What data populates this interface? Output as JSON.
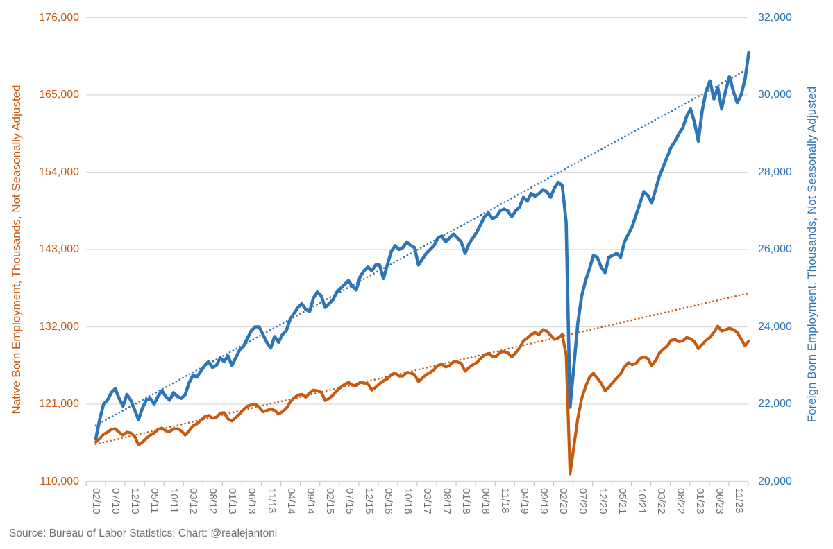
{
  "chart_data": {
    "type": "line",
    "grid": "horizontal",
    "legend_position": "none",
    "x_axis": {
      "frequency": "monthly",
      "start_month": "02/10",
      "end_month": "02/24",
      "label_interval_months": 5,
      "tick_labels": [
        "02/10",
        "07/10",
        "12/10",
        "05/11",
        "10/11",
        "03/12",
        "08/12",
        "01/13",
        "06/13",
        "11/13",
        "04/14",
        "09/14",
        "02/15",
        "07/15",
        "12/15",
        "05/16",
        "10/16",
        "03/17",
        "08/17",
        "01/18",
        "06/18",
        "11/18",
        "04/19",
        "09/19",
        "02/20",
        "07/20",
        "12/20",
        "05/21",
        "10/21",
        "03/22",
        "08/22",
        "01/23",
        "06/23",
        "11/23"
      ]
    },
    "left_axis": {
      "title": "Native Born Employment, Thousands, Not Seasonally Adjusted",
      "min": 110000,
      "max": 176000,
      "step": 11000,
      "tick_labels": [
        "176,000",
        "165,000",
        "154,000",
        "143,000",
        "132,000",
        "121,000",
        "110,000"
      ],
      "color": "#C55A11"
    },
    "right_axis": {
      "title": "Foreign Born Employment, Thousands, Not Seasonally Adjusted",
      "min": 20000,
      "max": 32000,
      "step": 2000,
      "tick_labels": [
        "32,000",
        "30,000",
        "28,000",
        "26,000",
        "24,000",
        "22,000",
        "20,000"
      ],
      "color": "#2E75B6"
    },
    "series": [
      {
        "name": "Native Born Employment",
        "axis": "left",
        "style": "solid",
        "color": "#C55A11",
        "values": [
          115600,
          116100,
          116700,
          117000,
          117400,
          117500,
          117000,
          116600,
          117000,
          116900,
          116400,
          115200,
          115600,
          116100,
          116600,
          116900,
          117400,
          117600,
          117200,
          117100,
          117500,
          117500,
          117200,
          116600,
          117200,
          117900,
          118200,
          118700,
          119200,
          119400,
          119000,
          119100,
          119700,
          119800,
          118900,
          118600,
          119100,
          119600,
          120200,
          120700,
          120900,
          121000,
          120600,
          119900,
          120100,
          120300,
          120100,
          119600,
          119900,
          120400,
          121300,
          121900,
          122300,
          122400,
          122000,
          122600,
          123000,
          122900,
          122700,
          121500,
          121800,
          122300,
          122900,
          123400,
          123800,
          124100,
          123700,
          123600,
          124100,
          124000,
          123900,
          123000,
          123400,
          123900,
          124300,
          124600,
          125200,
          125400,
          125000,
          125000,
          125500,
          125400,
          125200,
          124200,
          124700,
          125200,
          125500,
          125900,
          126500,
          126700,
          126300,
          126500,
          127000,
          127000,
          126800,
          125700,
          126200,
          126600,
          126900,
          127500,
          128000,
          128200,
          127800,
          127800,
          128400,
          128500,
          128300,
          127700,
          128300,
          129000,
          130000,
          130400,
          130900,
          131200,
          130900,
          131600,
          131400,
          130800,
          130200,
          130400,
          130900,
          128000,
          111100,
          115000,
          119000,
          121800,
          123500,
          124800,
          125400,
          124700,
          124000,
          122900,
          123400,
          124100,
          124700,
          125300,
          126300,
          126900,
          126600,
          126800,
          127500,
          127700,
          127500,
          126500,
          127200,
          128300,
          128800,
          129300,
          130100,
          130200,
          129900,
          130000,
          130500,
          130300,
          129900,
          128900,
          129500,
          130100,
          130500,
          131200,
          132100,
          131400,
          131600,
          131800,
          131600,
          131200,
          130300,
          129300,
          130000
        ]
      },
      {
        "name": "Foreign Born Employment",
        "axis": "right",
        "style": "solid",
        "color": "#2E75B6",
        "values": [
          21100,
          21600,
          22000,
          22100,
          22300,
          22400,
          22150,
          21950,
          22250,
          22100,
          21850,
          21600,
          21900,
          22100,
          22150,
          22000,
          22200,
          22350,
          22200,
          22100,
          22300,
          22200,
          22150,
          22250,
          22550,
          22750,
          22700,
          22850,
          23000,
          23100,
          22950,
          23000,
          23200,
          23100,
          23250,
          23000,
          23200,
          23400,
          23500,
          23700,
          23900,
          24000,
          24000,
          23800,
          23600,
          23450,
          23750,
          23600,
          23800,
          23900,
          24200,
          24350,
          24500,
          24600,
          24450,
          24400,
          24750,
          24900,
          24800,
          24500,
          24600,
          24700,
          24900,
          25000,
          25100,
          25200,
          25050,
          24950,
          25300,
          25450,
          25550,
          25450,
          25600,
          25600,
          25250,
          25600,
          25950,
          26100,
          26000,
          26050,
          26200,
          26100,
          26050,
          25600,
          25750,
          25900,
          26000,
          26100,
          26300,
          26350,
          26200,
          26300,
          26400,
          26300,
          26200,
          25900,
          26150,
          26300,
          26450,
          26650,
          26850,
          26950,
          26800,
          26850,
          27000,
          27050,
          27000,
          26850,
          27000,
          27100,
          27350,
          27250,
          27450,
          27380,
          27450,
          27550,
          27500,
          27350,
          27600,
          27740,
          27650,
          26700,
          21920,
          23000,
          24100,
          24800,
          25200,
          25500,
          25850,
          25800,
          25550,
          25400,
          25800,
          25850,
          25900,
          25800,
          26200,
          26400,
          26600,
          26900,
          27200,
          27500,
          27400,
          27200,
          27550,
          27900,
          28150,
          28400,
          28650,
          28800,
          29000,
          29150,
          29450,
          29640,
          29300,
          28800,
          29600,
          30100,
          30360,
          29900,
          30200,
          29640,
          30100,
          30480,
          30100,
          29800,
          30000,
          30400,
          31110
        ]
      },
      {
        "name": "Native Born linear trend",
        "axis": "left",
        "style": "dotted",
        "color": "#C55A11",
        "values": [
          115300,
          136800
        ]
      },
      {
        "name": "Foreign Born linear trend",
        "axis": "right",
        "style": "dotted",
        "color": "#2E75B6",
        "values": [
          21450,
          30680
        ]
      }
    ]
  },
  "footer": {
    "source_text": "Source: Bureau of Labor Statistics; Chart: @realejantoni"
  },
  "colors": {
    "native_accent": "#C55A11",
    "foreign_accent": "#2E75B6",
    "gridline": "#D9D9D9",
    "axis_line": "#C8C8C8",
    "x_tick_text": "#707070"
  }
}
